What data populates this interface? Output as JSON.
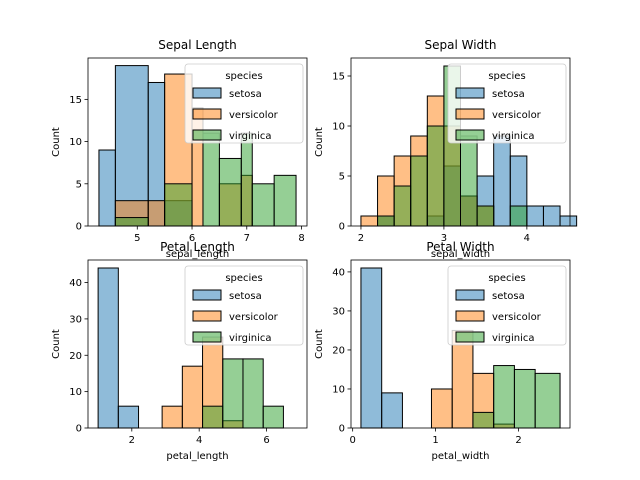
{
  "chart_data": [
    {
      "type": "histogram",
      "title": "Sepal Length",
      "xlabel": "sepal_length",
      "ylabel": "Count",
      "xlim": [
        4.1,
        8.1
      ],
      "ylim": [
        0,
        19.9
      ],
      "xticks": [
        5,
        6,
        7,
        8
      ],
      "yticks": [
        0,
        5,
        10,
        15
      ],
      "legend": {
        "title": "species",
        "position": "top-right",
        "entries": [
          "setosa",
          "versicolor",
          "virginica"
        ]
      },
      "series": [
        {
          "name": "setosa",
          "bins": [
            [
              4.3,
              4.6,
              9
            ],
            [
              4.6,
              5.2,
              19
            ],
            [
              5.2,
              5.5,
              17
            ],
            [
              5.5,
              6.0,
              3
            ],
            [
              6.0,
              6.2,
              0
            ],
            [
              6.2,
              6.5,
              0
            ],
            [
              6.5,
              6.9,
              0
            ],
            [
              6.9,
              7.1,
              0
            ],
            [
              7.1,
              7.5,
              0
            ],
            [
              7.5,
              7.9,
              0
            ]
          ]
        },
        {
          "name": "versicolor",
          "bins": [
            [
              4.3,
              4.6,
              0
            ],
            [
              4.6,
              5.2,
              3
            ],
            [
              5.2,
              5.5,
              3
            ],
            [
              5.5,
              6.0,
              18
            ],
            [
              6.0,
              6.2,
              14
            ],
            [
              6.2,
              6.5,
              0
            ],
            [
              6.5,
              6.9,
              5
            ],
            [
              6.9,
              7.1,
              6
            ],
            [
              7.1,
              7.5,
              0
            ],
            [
              7.5,
              7.9,
              0
            ]
          ]
        },
        {
          "name": "virginica",
          "bins": [
            [
              4.3,
              4.6,
              0
            ],
            [
              4.6,
              5.2,
              1
            ],
            [
              5.2,
              5.5,
              0
            ],
            [
              5.5,
              6.0,
              5
            ],
            [
              6.0,
              6.2,
              0
            ],
            [
              6.2,
              6.5,
              11
            ],
            [
              6.5,
              6.9,
              8
            ],
            [
              6.9,
              7.1,
              11
            ],
            [
              7.1,
              7.5,
              5
            ],
            [
              7.5,
              7.9,
              6
            ]
          ]
        }
      ]
    },
    {
      "type": "histogram",
      "title": "Sepal Width",
      "xlabel": "sepal_width",
      "ylabel": "Count",
      "xlim": [
        1.88,
        4.52
      ],
      "ylim": [
        0,
        16.8
      ],
      "xticks": [
        2,
        3,
        4
      ],
      "yticks": [
        0,
        5,
        10,
        15
      ],
      "legend": {
        "title": "species",
        "position": "top-right",
        "entries": [
          "setosa",
          "versicolor",
          "virginica"
        ]
      },
      "series": [
        {
          "name": "setosa",
          "bins": [
            [
              2.0,
              2.2,
              0
            ],
            [
              2.2,
              2.4,
              1
            ],
            [
              2.4,
              2.6,
              0
            ],
            [
              2.6,
              2.8,
              0
            ],
            [
              2.8,
              3.0,
              1
            ],
            [
              3.0,
              3.2,
              6
            ],
            [
              3.2,
              3.4,
              3
            ],
            [
              3.4,
              3.6,
              5
            ],
            [
              3.6,
              3.8,
              9
            ],
            [
              3.8,
              4.0,
              7
            ],
            [
              4.0,
              4.2,
              2
            ],
            [
              4.2,
              4.4,
              2
            ],
            [
              4.4,
              4.6,
              1
            ]
          ]
        },
        {
          "name": "versicolor",
          "bins": [
            [
              2.0,
              2.2,
              1
            ],
            [
              2.2,
              2.4,
              5
            ],
            [
              2.4,
              2.6,
              7
            ],
            [
              2.6,
              2.8,
              9
            ],
            [
              2.8,
              3.0,
              13
            ],
            [
              3.0,
              3.2,
              10
            ],
            [
              3.2,
              3.4,
              3
            ],
            [
              3.4,
              3.6,
              2
            ],
            [
              3.6,
              3.8,
              0
            ],
            [
              3.8,
              4.0,
              0
            ],
            [
              4.0,
              4.2,
              0
            ],
            [
              4.2,
              4.4,
              0
            ],
            [
              4.4,
              4.6,
              0
            ]
          ]
        },
        {
          "name": "virginica",
          "bins": [
            [
              2.0,
              2.2,
              0
            ],
            [
              2.2,
              2.4,
              1
            ],
            [
              2.4,
              2.6,
              4
            ],
            [
              2.6,
              2.8,
              7
            ],
            [
              2.8,
              3.0,
              10
            ],
            [
              3.0,
              3.2,
              16
            ],
            [
              3.2,
              3.4,
              9
            ],
            [
              3.4,
              3.6,
              2
            ],
            [
              3.6,
              3.8,
              0
            ],
            [
              3.8,
              4.0,
              2
            ],
            [
              4.0,
              4.2,
              0
            ],
            [
              4.2,
              4.4,
              0
            ],
            [
              4.4,
              4.6,
              0
            ]
          ]
        }
      ]
    },
    {
      "type": "histogram",
      "title": "Petal Length",
      "xlabel": "petal_length",
      "ylabel": "Count",
      "xlim": [
        0.7,
        7.2
      ],
      "ylim": [
        0,
        46.2
      ],
      "xticks": [
        2,
        4,
        6
      ],
      "yticks": [
        0,
        10,
        20,
        30,
        40
      ],
      "legend": {
        "title": "species",
        "position": "top-right",
        "entries": [
          "setosa",
          "versicolor",
          "virginica"
        ]
      },
      "series": [
        {
          "name": "setosa",
          "bins": [
            [
              1.0,
              1.6,
              44
            ],
            [
              1.6,
              2.2,
              6
            ],
            [
              2.2,
              2.9,
              0
            ],
            [
              2.9,
              3.5,
              0
            ],
            [
              3.5,
              4.1,
              0
            ],
            [
              4.1,
              4.7,
              0
            ],
            [
              4.7,
              5.3,
              0
            ],
            [
              5.3,
              5.9,
              0
            ],
            [
              5.9,
              6.5,
              0
            ],
            [
              6.5,
              6.9,
              0
            ]
          ]
        },
        {
          "name": "versicolor",
          "bins": [
            [
              1.0,
              1.6,
              0
            ],
            [
              1.6,
              2.2,
              0
            ],
            [
              2.2,
              2.9,
              0
            ],
            [
              2.9,
              3.5,
              6
            ],
            [
              3.5,
              4.1,
              17
            ],
            [
              4.1,
              4.7,
              25
            ],
            [
              4.7,
              5.3,
              2
            ],
            [
              5.3,
              5.9,
              0
            ],
            [
              5.9,
              6.5,
              0
            ],
            [
              6.5,
              6.9,
              0
            ]
          ]
        },
        {
          "name": "virginica",
          "bins": [
            [
              1.0,
              1.6,
              0
            ],
            [
              1.6,
              2.2,
              0
            ],
            [
              2.2,
              2.9,
              0
            ],
            [
              2.9,
              3.5,
              0
            ],
            [
              3.5,
              4.1,
              0
            ],
            [
              4.1,
              4.7,
              6
            ],
            [
              4.7,
              5.3,
              19
            ],
            [
              5.3,
              5.9,
              19
            ],
            [
              5.9,
              6.5,
              6
            ],
            [
              6.5,
              6.9,
              0
            ]
          ]
        }
      ]
    },
    {
      "type": "histogram",
      "title": "Petal Width",
      "xlabel": "petal_width",
      "ylabel": "Count",
      "xlim": [
        -0.02,
        2.62
      ],
      "ylim": [
        0,
        43.05
      ],
      "xticks": [
        0,
        1,
        2
      ],
      "yticks": [
        0,
        10,
        20,
        30,
        40
      ],
      "legend": {
        "title": "species",
        "position": "top-right",
        "entries": [
          "setosa",
          "versicolor",
          "virginica"
        ]
      },
      "series": [
        {
          "name": "setosa",
          "bins": [
            [
              0.1,
              0.35,
              41
            ],
            [
              0.35,
              0.6,
              9
            ],
            [
              0.6,
              0.95,
              0
            ],
            [
              0.95,
              1.2,
              0
            ],
            [
              1.2,
              1.45,
              0
            ],
            [
              1.45,
              1.7,
              0
            ],
            [
              1.7,
              1.95,
              0
            ],
            [
              1.95,
              2.2,
              0
            ],
            [
              2.2,
              2.5,
              0
            ]
          ]
        },
        {
          "name": "versicolor",
          "bins": [
            [
              0.1,
              0.35,
              0
            ],
            [
              0.35,
              0.6,
              0
            ],
            [
              0.6,
              0.95,
              0
            ],
            [
              0.95,
              1.2,
              10
            ],
            [
              1.2,
              1.45,
              25
            ],
            [
              1.45,
              1.7,
              14
            ],
            [
              1.7,
              1.95,
              1
            ],
            [
              1.95,
              2.2,
              0
            ],
            [
              2.2,
              2.5,
              0
            ]
          ]
        },
        {
          "name": "virginica",
          "bins": [
            [
              0.1,
              0.35,
              0
            ],
            [
              0.35,
              0.6,
              0
            ],
            [
              0.6,
              0.95,
              0
            ],
            [
              0.95,
              1.2,
              0
            ],
            [
              1.2,
              1.45,
              0
            ],
            [
              1.45,
              1.7,
              4
            ],
            [
              1.7,
              1.95,
              16
            ],
            [
              1.95,
              2.2,
              15
            ],
            [
              2.2,
              2.5,
              14
            ]
          ]
        }
      ]
    }
  ],
  "colors": {
    "setosa": "#1f77b4",
    "versicolor": "#ff7f0e",
    "virginica": "#2ca02c"
  }
}
